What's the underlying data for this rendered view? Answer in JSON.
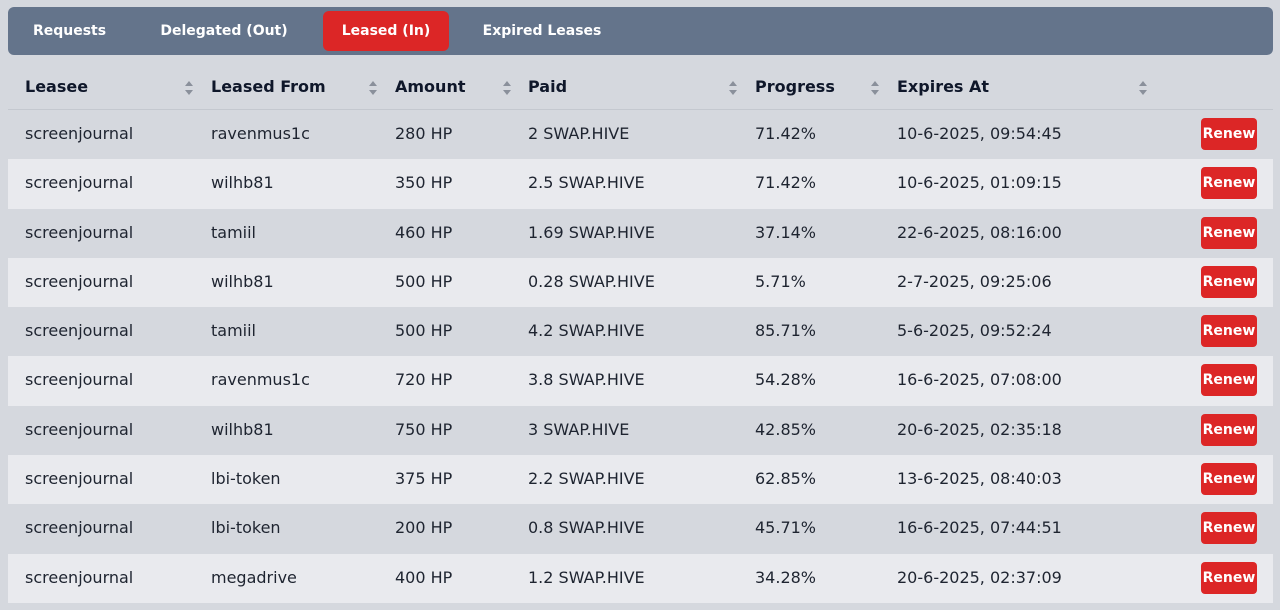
{
  "tabs": [
    {
      "label": "Requests",
      "active": false
    },
    {
      "label": "Delegated (Out)",
      "active": false
    },
    {
      "label": "Leased (In)",
      "active": true
    },
    {
      "label": "Expired Leases",
      "active": false
    }
  ],
  "columns": [
    "Leasee",
    "Leased From",
    "Amount",
    "Paid",
    "Progress",
    "Expires At"
  ],
  "renew_label": "Renew",
  "rows": [
    [
      "screenjournal",
      "ravenmus1c",
      "280 HP",
      "2 SWAP.HIVE",
      "71.42%",
      "10-6-2025, 09:54:45"
    ],
    [
      "screenjournal",
      "wilhb81",
      "350 HP",
      "2.5 SWAP.HIVE",
      "71.42%",
      "10-6-2025, 01:09:15"
    ],
    [
      "screenjournal",
      "tamiil",
      "460 HP",
      "1.69 SWAP.HIVE",
      "37.14%",
      "22-6-2025, 08:16:00"
    ],
    [
      "screenjournal",
      "wilhb81",
      "500 HP",
      "0.28 SWAP.HIVE",
      "5.71%",
      "2-7-2025, 09:25:06"
    ],
    [
      "screenjournal",
      "tamiil",
      "500 HP",
      "4.2 SWAP.HIVE",
      "85.71%",
      "5-6-2025, 09:52:24"
    ],
    [
      "screenjournal",
      "ravenmus1c",
      "720 HP",
      "3.8 SWAP.HIVE",
      "54.28%",
      "16-6-2025, 07:08:00"
    ],
    [
      "screenjournal",
      "wilhb81",
      "750 HP",
      "3 SWAP.HIVE",
      "42.85%",
      "20-6-2025, 02:35:18"
    ],
    [
      "screenjournal",
      "lbi-token",
      "375 HP",
      "2.2 SWAP.HIVE",
      "62.85%",
      "13-6-2025, 08:40:03"
    ],
    [
      "screenjournal",
      "lbi-token",
      "200 HP",
      "0.8 SWAP.HIVE",
      "45.71%",
      "16-6-2025, 07:44:51"
    ],
    [
      "screenjournal",
      "megadrive",
      "400 HP",
      "1.2 SWAP.HIVE",
      "34.28%",
      "20-6-2025, 02:37:09"
    ]
  ],
  "colors": {
    "accent": "#dc2626",
    "tabbar": "#64748b",
    "row_odd": "#d5d8de",
    "row_even": "#e9eaee"
  }
}
